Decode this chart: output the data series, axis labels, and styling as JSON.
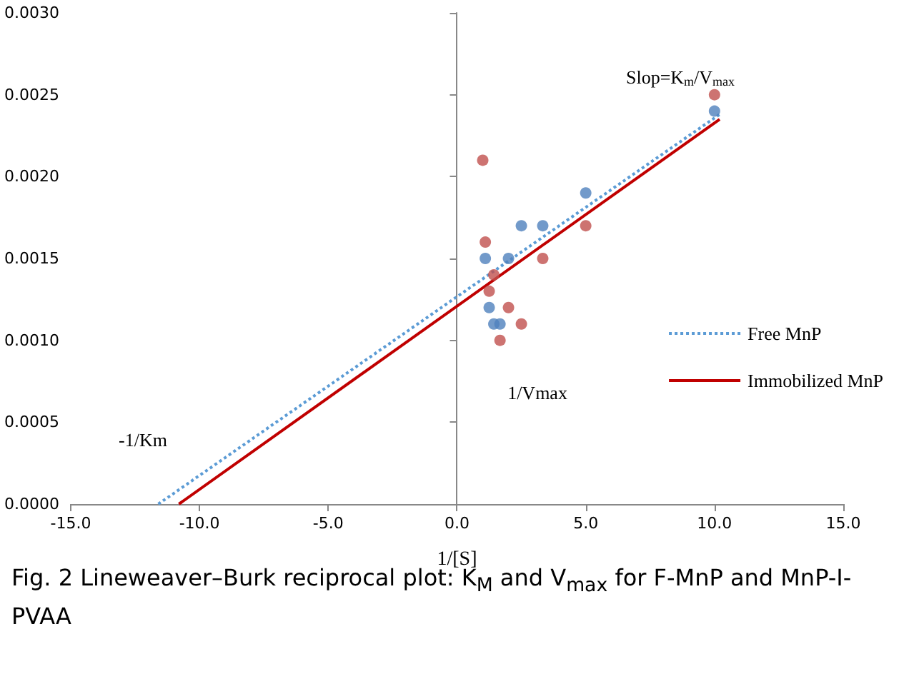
{
  "chart_data": {
    "type": "scatter",
    "xlabel": "1/[S]",
    "xlim": [
      -15,
      15
    ],
    "xticks": [
      {
        "value": -15,
        "label": "-15.0"
      },
      {
        "value": -10,
        "label": "-10.0"
      },
      {
        "value": -5,
        "label": "-5.0"
      },
      {
        "value": 0,
        "label": "0.0"
      },
      {
        "value": 5,
        "label": "5.0"
      },
      {
        "value": 10,
        "label": "10.0"
      },
      {
        "value": 15,
        "label": "15.0"
      }
    ],
    "ylim": [
      0,
      0.003
    ],
    "yticks": [
      {
        "value": 0,
        "label": "0.0000"
      },
      {
        "value": 0.0005,
        "label": "0.0005"
      },
      {
        "value": 0.001,
        "label": "0.0010"
      },
      {
        "value": 0.0015,
        "label": "0.0015"
      },
      {
        "value": 0.002,
        "label": "0.0020"
      },
      {
        "value": 0.0025,
        "label": "0.0025"
      },
      {
        "value": 0.003,
        "label": "0.0030"
      }
    ],
    "legend": "right",
    "marker": "circle",
    "series": [
      {
        "color": "#4f81bd",
        "x": [
          1.1,
          1.25,
          1.43,
          1.67,
          2,
          2.5,
          3.33,
          5,
          10
        ],
        "values": [
          0.0015,
          0.0012,
          0.0011,
          0.0011,
          0.0015,
          0.0017,
          0.0017,
          0.0019,
          0.0024
        ]
      },
      {
        "color": "#c0504d",
        "x": [
          1,
          1.1,
          1.25,
          1.43,
          1.67,
          2,
          2.5,
          3.33,
          5,
          10
        ],
        "values": [
          0.0021,
          0.0016,
          0.0013,
          0.0014,
          0.001,
          0.0012,
          0.0011,
          0.0015,
          0.0017,
          0.0025
        ]
      },
      {
        "type": "line",
        "name": "Free MnP",
        "color": "#5b9bd5",
        "line_style": "dotted",
        "marker": "none",
        "x": [
          -11.6,
          10.2
        ],
        "values": [
          0,
          0.00238
        ]
      },
      {
        "type": "line",
        "name": "Immobilized MnP",
        "color": "#c00000",
        "line_style": "solid",
        "marker": "none",
        "x": [
          -10.8,
          10.2
        ],
        "values": [
          0,
          0.00235
        ]
      }
    ],
    "annotations": [
      "Slop=K$_{m}$/V$_{max}$",
      "1/Vmax",
      "-1/Km",
      "Fig. 2  Lineweaver–Burk reciprocal plot: K$_{M}$ and V$_{max}$ for F-MnP and MnP-I-PVAA"
    ]
  }
}
